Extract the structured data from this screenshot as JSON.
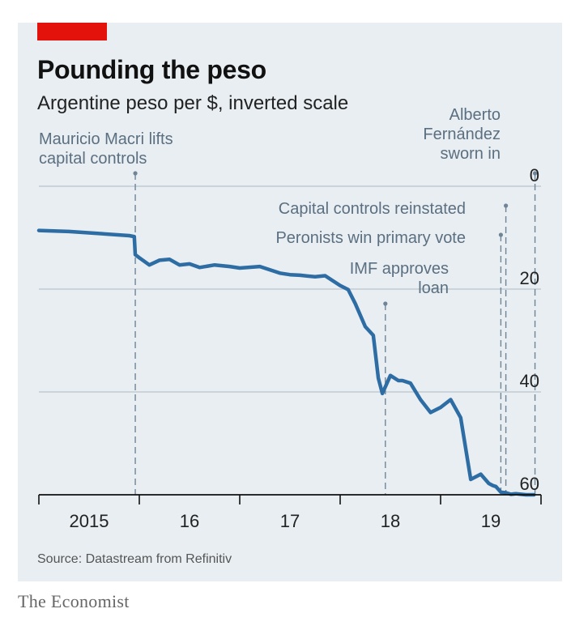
{
  "header": {
    "title": "Pounding the peso",
    "subtitle": "Argentine peso per $, inverted scale",
    "accent_color": "#e3120b"
  },
  "footer": {
    "source": "Source: Datastream from Refinitiv",
    "brand": "The Economist"
  },
  "chart_data": {
    "type": "line",
    "title": "Pounding the peso",
    "subtitle": "Argentine peso per $, inverted scale",
    "xlabel": "",
    "ylabel": "Argentine peso per $",
    "y_inverted": true,
    "ylim": [
      0,
      60
    ],
    "xlim": [
      2015.0,
      2020.0
    ],
    "y_ticks": [
      "0",
      "20",
      "40",
      "60"
    ],
    "y_tick_values": [
      0,
      20,
      40,
      60
    ],
    "x_ticks": [
      "2015",
      "16",
      "17",
      "18",
      "19"
    ],
    "x_tick_values": [
      2015.5,
      2016.5,
      2017.5,
      2018.5,
      2019.5
    ],
    "grid": true,
    "line_color": "#2e6da4",
    "series": [
      {
        "x": [
          2015.0,
          2015.3,
          2015.6,
          2015.9,
          2015.95,
          2015.96,
          2016.0,
          2016.1,
          2016.2,
          2016.3,
          2016.4,
          2016.5,
          2016.6,
          2016.75,
          2016.9,
          2017.0,
          2017.2,
          2017.4,
          2017.5,
          2017.6,
          2017.75,
          2017.85,
          2018.0,
          2018.08,
          2018.15,
          2018.25,
          2018.33,
          2018.38,
          2018.42,
          2018.5,
          2018.58,
          2018.62,
          2018.7,
          2018.8,
          2018.9,
          2019.0,
          2019.1,
          2019.2,
          2019.3,
          2019.4,
          2019.48,
          2019.52,
          2019.55,
          2019.6,
          2019.65,
          2019.7,
          2019.75,
          2019.8,
          2019.85,
          2019.93
        ],
        "values": [
          8.6,
          8.8,
          9.2,
          9.6,
          9.8,
          13.3,
          13.9,
          15.3,
          14.4,
          14.2,
          15.3,
          15.1,
          15.8,
          15.3,
          15.6,
          15.9,
          15.6,
          16.9,
          17.2,
          17.3,
          17.6,
          17.4,
          19.3,
          20.1,
          22.8,
          27.3,
          29.0,
          37.3,
          40.3,
          36.8,
          37.8,
          37.8,
          38.3,
          41.5,
          44.0,
          43.0,
          41.5,
          45.0,
          57.0,
          56.0,
          57.8,
          58.2,
          58.4,
          59.5,
          59.6,
          59.9,
          59.8,
          59.9,
          60.0,
          60.0
        ]
      }
    ],
    "annotations": [
      {
        "x": 2015.96,
        "lines": [
          "Mauricio Macri lifts",
          "capital controls"
        ]
      },
      {
        "x": 2018.45,
        "lines": [
          "IMF approves",
          "loan"
        ]
      },
      {
        "x": 2019.6,
        "lines": [
          "Peronists win primary vote"
        ]
      },
      {
        "x": 2019.65,
        "lines": [
          "Capital controls reinstated"
        ]
      },
      {
        "x": 2019.94,
        "lines": [
          "Alberto",
          "Fernández",
          "sworn in"
        ]
      }
    ]
  }
}
